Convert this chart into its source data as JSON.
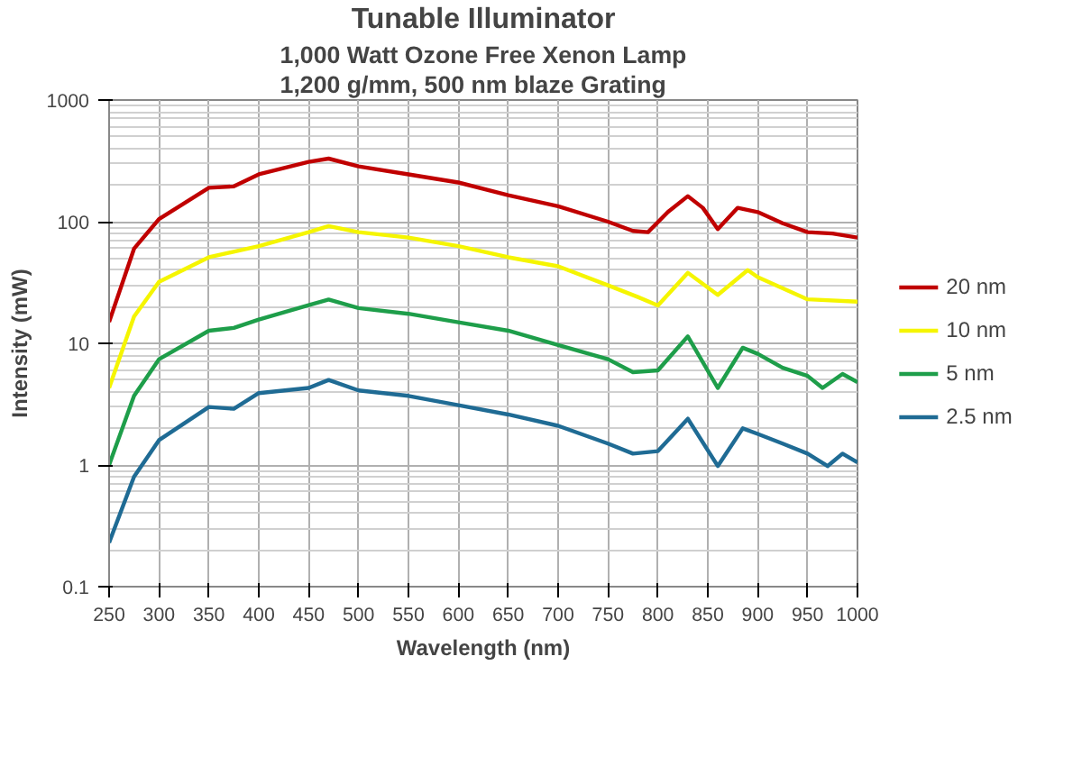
{
  "chart_data": {
    "type": "line",
    "title": "Tunable Illuminator",
    "subtitle": "1,000 Watt Ozone Free Xenon Lamp\n1,200 g/mm, 500 nm blaze Grating",
    "xlabel": "Wavelength (nm)",
    "ylabel": "Intensity (mW)",
    "log": "y",
    "grid": true,
    "legend": "right",
    "marker": "none",
    "line_style": "solid",
    "xlim": [
      250,
      1000
    ],
    "xticks": [
      250,
      300,
      350,
      400,
      450,
      500,
      550,
      600,
      650,
      700,
      750,
      800,
      850,
      900,
      950,
      1000
    ],
    "ylim": [
      0.1,
      1000
    ],
    "yticks": [
      0.1,
      1,
      10,
      100,
      1000
    ],
    "series": [
      {
        "name": "20 nm",
        "color": "#c00000",
        "x": [
          250,
          275,
          300,
          350,
          375,
          400,
          450,
          470,
          500,
          550,
          600,
          650,
          700,
          750,
          775,
          790,
          810,
          830,
          845,
          860,
          880,
          900,
          925,
          950,
          975,
          1000
        ],
        "values": [
          15,
          60,
          105,
          190,
          195,
          245,
          310,
          330,
          285,
          245,
          210,
          165,
          134,
          100,
          84,
          82,
          120,
          162,
          130,
          87,
          130,
          120,
          97,
          82,
          80,
          74
        ]
      },
      {
        "name": "10 nm",
        "color": "#f5f500",
        "x": [
          250,
          275,
          300,
          350,
          400,
          450,
          470,
          500,
          550,
          600,
          650,
          700,
          750,
          780,
          800,
          830,
          860,
          890,
          900,
          950,
          1000
        ],
        "values": [
          4.3,
          16.6,
          32,
          51,
          63,
          82,
          92,
          82,
          74,
          63,
          51,
          43,
          30,
          24,
          20.5,
          38,
          25,
          40,
          35,
          23,
          22
        ]
      },
      {
        "name": "5 nm",
        "color": "#1e9e4a",
        "x": [
          250,
          275,
          300,
          350,
          375,
          400,
          450,
          470,
          500,
          550,
          600,
          650,
          700,
          750,
          775,
          800,
          830,
          860,
          885,
          900,
          925,
          950,
          965,
          985,
          1000
        ],
        "values": [
          1,
          3.7,
          7.4,
          12.7,
          13.4,
          15.7,
          20.6,
          22.9,
          19.5,
          17.5,
          14.9,
          12.7,
          9.7,
          7.4,
          5.8,
          6,
          11.4,
          4.3,
          9.2,
          8.2,
          6.3,
          5.4,
          4.3,
          5.6,
          4.8
        ]
      },
      {
        "name": "2.5 nm",
        "color": "#1f6b94",
        "x": [
          250,
          275,
          300,
          350,
          375,
          400,
          450,
          470,
          500,
          550,
          600,
          650,
          700,
          750,
          775,
          800,
          830,
          860,
          885,
          900,
          925,
          950,
          970,
          985,
          1000
        ],
        "values": [
          0.23,
          0.8,
          1.6,
          3.0,
          2.9,
          3.9,
          4.3,
          5.0,
          4.1,
          3.7,
          3.1,
          2.6,
          2.1,
          1.5,
          1.24,
          1.3,
          2.4,
          0.98,
          2.0,
          1.8,
          1.5,
          1.24,
          0.98,
          1.24,
          1.05
        ]
      }
    ]
  }
}
